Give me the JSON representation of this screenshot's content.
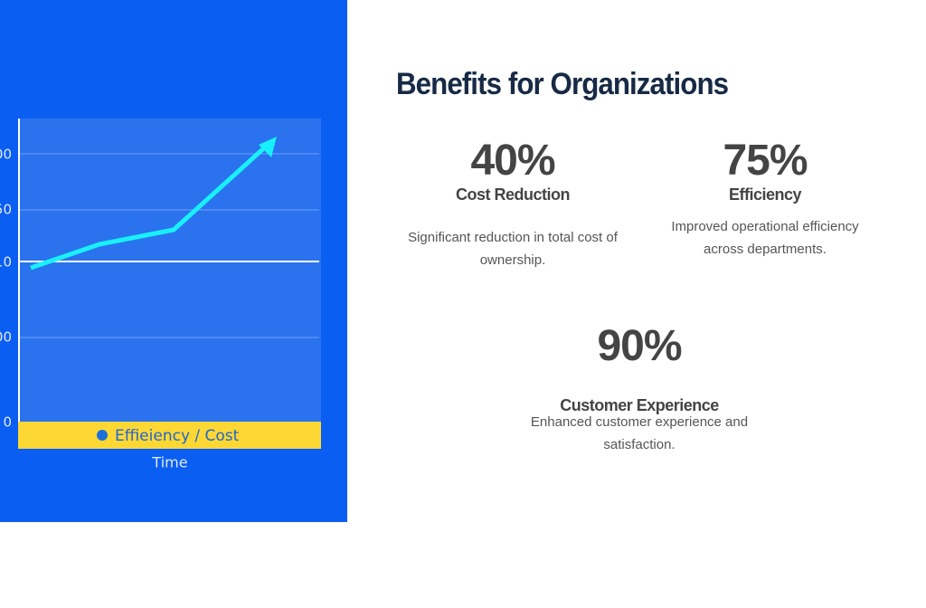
{
  "heading": "Benefits for Organizations",
  "chart_image": {
    "tick_labels": [
      "00",
      "50",
      "10",
      "00",
      "0"
    ],
    "legend": "Effieiency / Cost",
    "x_label": "Time"
  },
  "stats": [
    {
      "value": "40%",
      "label": "Cost Reduction",
      "description": "Significant reduction in total cost of ownership."
    },
    {
      "value": "75%",
      "label": "Efficiency",
      "description": "Improved operational efficiency across departments."
    },
    {
      "value": "90%",
      "label": "Customer Experience",
      "description": "Enhanced customer experience and satisfaction."
    }
  ]
}
